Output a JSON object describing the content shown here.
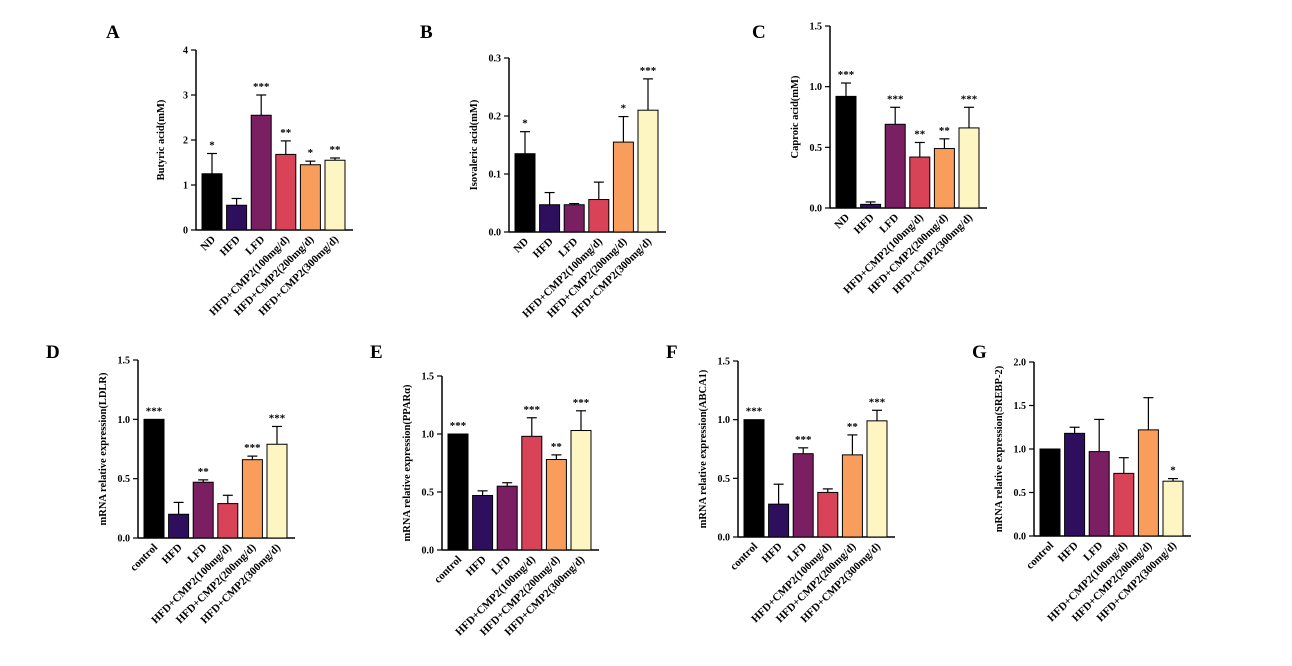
{
  "colors": {
    "ND": "#000000",
    "HFD": "#2e0f5e",
    "LFD": "#7b1f63",
    "CMP2_100": "#d94358",
    "CMP2_200": "#f99d5c",
    "CMP2_300": "#fdf6c3"
  },
  "chart_data": [
    {
      "panel": "A",
      "type": "bar",
      "ylabel": "Butyric acid(mM)",
      "ylim": [
        0,
        4
      ],
      "yticks": [
        "0",
        "1",
        "2",
        "3",
        "4"
      ],
      "categories": [
        "ND",
        "HFD",
        "LFD",
        "HFD+CMP2(100mg/d)",
        "HFD+CMP2(200mg/d)",
        "HFD+CMP2(300mg/d)"
      ],
      "values": [
        1.25,
        0.55,
        2.55,
        1.68,
        1.45,
        1.55
      ],
      "errors": [
        0.45,
        0.15,
        0.45,
        0.3,
        0.08,
        0.05
      ],
      "significance": [
        "*",
        "",
        "***",
        "**",
        "*",
        "**"
      ]
    },
    {
      "panel": "B",
      "type": "bar",
      "ylabel": "Isovaleric acid(mM)",
      "ylim": [
        0,
        0.3
      ],
      "yticks": [
        "0.0",
        "0.1",
        "0.2",
        "0.3"
      ],
      "categories": [
        "ND",
        "HFD",
        "LFD",
        "HFD+CMP2(100mg/d)",
        "HFD+CMP2(200mg/d)",
        "HFD+CMP2(300mg/d)"
      ],
      "values": [
        0.135,
        0.047,
        0.047,
        0.056,
        0.155,
        0.21
      ],
      "errors": [
        0.038,
        0.021,
        0.002,
        0.03,
        0.044,
        0.054
      ],
      "significance": [
        "*",
        "",
        "",
        "",
        "*",
        "***"
      ]
    },
    {
      "panel": "C",
      "type": "bar",
      "ylabel": "Caproic acid(mM)",
      "ylim": [
        0,
        1.5
      ],
      "yticks": [
        "0.0",
        "0.5",
        "1.0",
        "1.5"
      ],
      "categories": [
        "ND",
        "HFD",
        "LFD",
        "HFD+CMP2(100mg/d)",
        "HFD+CMP2(200mg/d)",
        "HFD+CMP2(300mg/d)"
      ],
      "values": [
        0.92,
        0.03,
        0.69,
        0.42,
        0.49,
        0.66
      ],
      "errors": [
        0.11,
        0.02,
        0.14,
        0.12,
        0.08,
        0.17
      ],
      "significance": [
        "***",
        "",
        "***",
        "**",
        "**",
        "***"
      ]
    },
    {
      "panel": "D",
      "type": "bar",
      "ylabel": "mRNA relative expression(LDLR)",
      "ylim": [
        0,
        1.5
      ],
      "yticks": [
        "0.0",
        "0.5",
        "1.0",
        "1.5"
      ],
      "categories": [
        "control",
        "HFD",
        "LFD",
        "HFD+CMP2(100mg/d)",
        "HFD+CMP2(200mg/d)",
        "HFD+CMP2(300mg/d)"
      ],
      "values": [
        1.0,
        0.2,
        0.47,
        0.29,
        0.66,
        0.79
      ],
      "errors": [
        0.0,
        0.1,
        0.02,
        0.07,
        0.03,
        0.15
      ],
      "significance": [
        "***",
        "",
        "**",
        "",
        "***",
        "***"
      ]
    },
    {
      "panel": "E",
      "type": "bar",
      "ylabel": "mRNA relative expression(PPARα)",
      "ylim": [
        0,
        1.5
      ],
      "yticks": [
        "0.0",
        "0.5",
        "1.0",
        "1.5"
      ],
      "categories": [
        "control",
        "HFD",
        "LFD",
        "HFD+CMP2(100mg/d)",
        "HFD+CMP2(200mg/d)",
        "HFD+CMP2(300mg/d)"
      ],
      "values": [
        1.0,
        0.47,
        0.55,
        0.98,
        0.78,
        1.03
      ],
      "errors": [
        0.0,
        0.04,
        0.03,
        0.16,
        0.04,
        0.17
      ],
      "significance": [
        "***",
        "",
        "",
        "***",
        "**",
        "***"
      ]
    },
    {
      "panel": "F",
      "type": "bar",
      "ylabel": "mRNA relative expression(ABCA1)",
      "ylim": [
        0,
        1.5
      ],
      "yticks": [
        "0.0",
        "0.5",
        "1.0",
        "1.5"
      ],
      "categories": [
        "control",
        "HFD",
        "LFD",
        "HFD+CMP2(100mg/d)",
        "HFD+CMP2(200mg/d)",
        "HFD+CMP2(300mg/d)"
      ],
      "values": [
        1.0,
        0.28,
        0.71,
        0.38,
        0.7,
        0.99
      ],
      "errors": [
        0.0,
        0.17,
        0.05,
        0.03,
        0.17,
        0.09
      ],
      "significance": [
        "***",
        "",
        "***",
        "",
        "**",
        "***"
      ]
    },
    {
      "panel": "G",
      "type": "bar",
      "ylabel": "mRNA relative expression(SREBP-2)",
      "ylim": [
        0,
        2.0
      ],
      "yticks": [
        "0.0",
        "0.5",
        "1.0",
        "1.5",
        "2.0"
      ],
      "categories": [
        "control",
        "HFD",
        "LFD",
        "HFD+CMP2(100mg/d)",
        "HFD+CMP2(200mg/d)",
        "HFD+CMP2(300mg/d)"
      ],
      "values": [
        1.0,
        1.18,
        0.97,
        0.72,
        1.22,
        0.63
      ],
      "errors": [
        0.0,
        0.07,
        0.37,
        0.18,
        0.37,
        0.03
      ],
      "significance": [
        "",
        "",
        "",
        "",
        "",
        "*"
      ]
    }
  ]
}
